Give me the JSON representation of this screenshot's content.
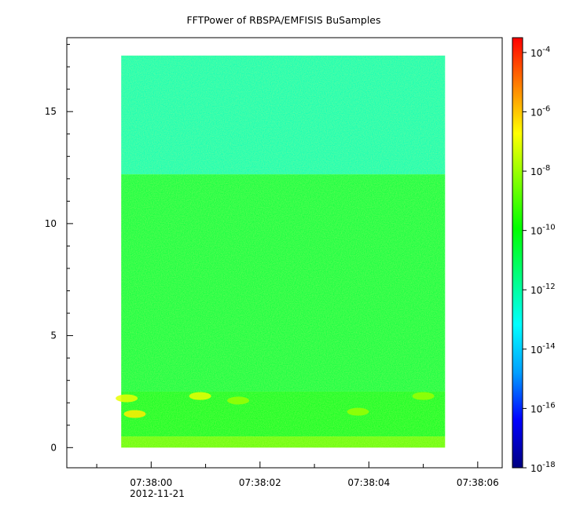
{
  "chart_data": {
    "type": "heatmap",
    "title": "FFTPower of RBSPA/EMFISIS  BuSamples",
    "xlabel": "",
    "ylabel": "",
    "date_label": "2012-11-21",
    "x_ticks": [
      "07:38:00",
      "07:38:02",
      "07:38:04",
      "07:38:06"
    ],
    "x_ticks_seconds": [
      0,
      2,
      4,
      6
    ],
    "x_range_seconds": [
      -1.55,
      6.45
    ],
    "data_x_range_seconds": [
      -0.55,
      5.4
    ],
    "y_ticks": [
      "0",
      "5",
      "10",
      "15"
    ],
    "y_ticks_values": [
      0,
      5,
      10,
      15
    ],
    "ylim": [
      -0.9,
      18.3
    ],
    "data_y_range": [
      0,
      17.5
    ],
    "colorbar": {
      "scale": "log",
      "range_exponents": [
        -18,
        -3.5
      ],
      "tick_labels": [
        {
          "base": "10",
          "exp": "-4"
        },
        {
          "base": "10",
          "exp": "-6"
        },
        {
          "base": "10",
          "exp": "-8"
        },
        {
          "base": "10",
          "exp": "-10"
        },
        {
          "base": "10",
          "exp": "-12"
        },
        {
          "base": "10",
          "exp": "-14"
        },
        {
          "base": "10",
          "exp": "-16"
        },
        {
          "base": "10",
          "exp": "-18"
        }
      ],
      "colormap": [
        "#000080",
        "#0000ff",
        "#00a0ff",
        "#00ffff",
        "#00ff80",
        "#00ff00",
        "#80ff00",
        "#ffff00",
        "#ff8000",
        "#ff0000"
      ]
    },
    "bands": [
      {
        "y_range": [
          12.2,
          17.5
        ],
        "level_exponent": -12.3
      },
      {
        "y_range": [
          2.5,
          12.2
        ],
        "level_exponent": -10.7
      },
      {
        "y_range": [
          0.5,
          2.5
        ],
        "level_exponent": -10.3
      },
      {
        "y_range": [
          0,
          0.5
        ],
        "level_exponent": -8.8
      }
    ],
    "hotspots": [
      {
        "x_seconds": -0.45,
        "y": 2.2,
        "level_exponent": -7.0
      },
      {
        "x_seconds": -0.3,
        "y": 1.5,
        "level_exponent": -6.5
      },
      {
        "x_seconds": 0.9,
        "y": 2.3,
        "level_exponent": -7.0
      },
      {
        "x_seconds": 1.6,
        "y": 2.1,
        "level_exponent": -8.0
      },
      {
        "x_seconds": 3.8,
        "y": 1.6,
        "level_exponent": -8.0
      },
      {
        "x_seconds": 5.0,
        "y": 2.3,
        "level_exponent": -8.0
      }
    ]
  }
}
